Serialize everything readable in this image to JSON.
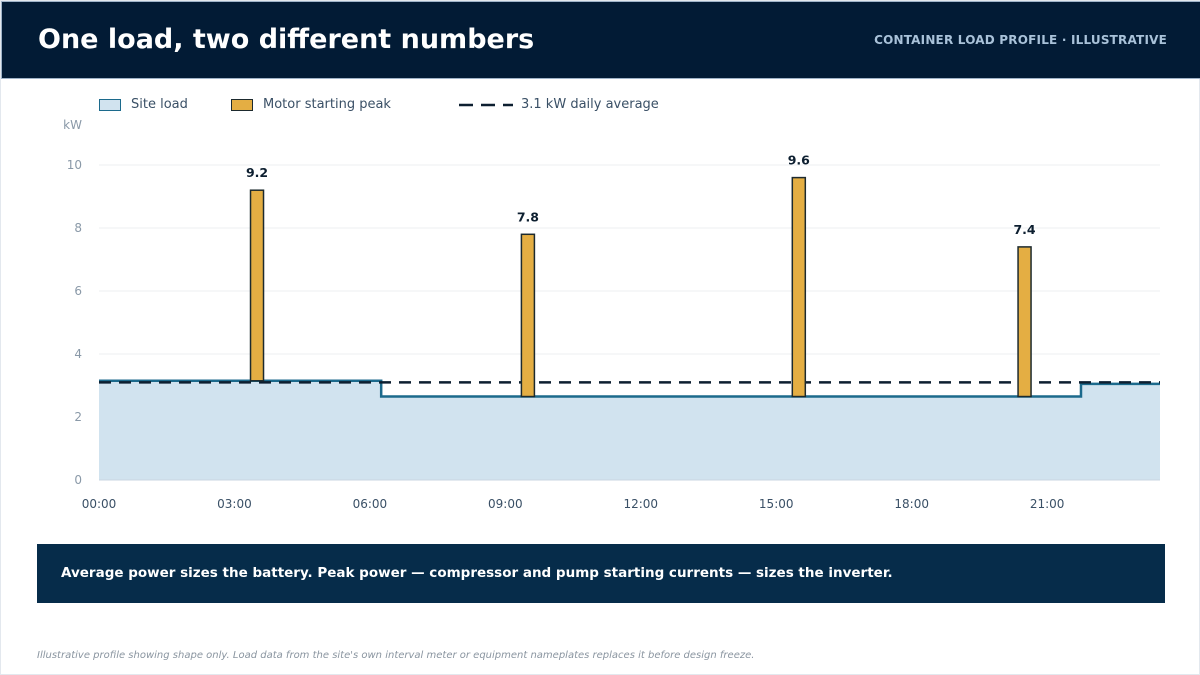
{
  "header": {
    "title": "One load, two different numbers",
    "tag": "CONTAINER LOAD PROFILE · ILLUSTRATIVE"
  },
  "legend": {
    "site_load": "Site load",
    "motor_peak": "Motor starting peak",
    "average": "3.1 kW daily average"
  },
  "chart_data": {
    "type": "area",
    "ylabel": "kW",
    "ylim": [
      0,
      10
    ],
    "yticks": [
      "0",
      "2",
      "4",
      "6",
      "8",
      "10"
    ],
    "xlim": [
      0,
      23.5
    ],
    "xticks": [
      "00:00",
      "03:00",
      "06:00",
      "09:00",
      "12:00",
      "15:00",
      "18:00",
      "21:00"
    ],
    "grid": true,
    "legend_position": "top-left",
    "site_load": {
      "name": "Site load",
      "steps": [
        {
          "from": 0,
          "to": 6.25,
          "kw": 3.15
        },
        {
          "from": 6.25,
          "to": 21.75,
          "kw": 2.65
        },
        {
          "from": 21.75,
          "to": 23.5,
          "kw": 3.05
        }
      ]
    },
    "peaks": {
      "name": "Motor starting peak",
      "points": [
        {
          "hour": 3.5,
          "kw": 9.2,
          "label": "9.2"
        },
        {
          "hour": 9.5,
          "kw": 7.8,
          "label": "7.8"
        },
        {
          "hour": 15.5,
          "kw": 9.6,
          "label": "9.6"
        },
        {
          "hour": 20.5,
          "kw": 7.4,
          "label": "7.4"
        }
      ]
    },
    "average_kw": 3.1,
    "colors": {
      "site_fill": "#d1e3ef",
      "site_line": "#1c6a8c",
      "peak_fill": "#e4ae43",
      "peak_stroke": "#1d2a2e",
      "average_line": "#0d1f30",
      "grid": "#eceff2"
    }
  },
  "callout": {
    "text": "Average power sizes the battery. Peak power — compressor and pump starting currents — sizes the inverter."
  },
  "footnote": "Illustrative profile showing shape only. Load data from the site's own interval meter or equipment nameplates replaces it before design freeze."
}
